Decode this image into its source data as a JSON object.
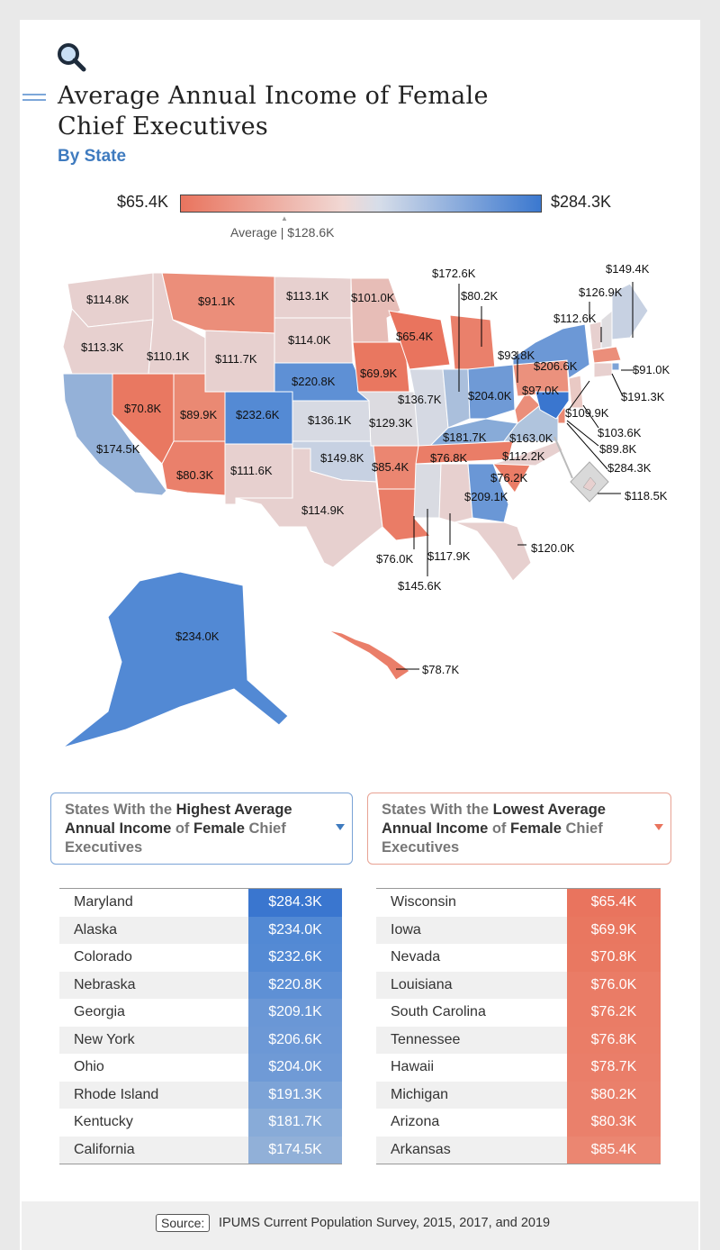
{
  "header": {
    "title": "Average Annual Income of Female Chief Executives",
    "subtitle": "By State"
  },
  "legend": {
    "min_label": "$65.4K",
    "max_label": "$284.3K",
    "average_label": "Average | $128.6K",
    "colors": {
      "low": "#e9745e",
      "mid": "#e9e2e6",
      "high": "#3b78cf"
    }
  },
  "map": {
    "states": [
      {
        "state": "Washington",
        "label": "$114.8K"
      },
      {
        "state": "Oregon",
        "label": "$113.3K"
      },
      {
        "state": "California",
        "label": "$174.5K"
      },
      {
        "state": "Idaho",
        "label": "$110.1K"
      },
      {
        "state": "Nevada",
        "label": "$70.8K"
      },
      {
        "state": "Utah",
        "label": "$89.9K"
      },
      {
        "state": "Arizona",
        "label": "$80.3K"
      },
      {
        "state": "Montana",
        "label": "$91.1K"
      },
      {
        "state": "Wyoming",
        "label": "$111.7K"
      },
      {
        "state": "Colorado",
        "label": "$232.6K"
      },
      {
        "state": "New Mexico",
        "label": "$111.6K"
      },
      {
        "state": "North Dakota",
        "label": "$113.1K"
      },
      {
        "state": "South Dakota",
        "label": "$114.0K"
      },
      {
        "state": "Nebraska",
        "label": "$220.8K"
      },
      {
        "state": "Kansas",
        "label": "$136.1K"
      },
      {
        "state": "Oklahoma",
        "label": "$149.8K"
      },
      {
        "state": "Texas",
        "label": "$114.9K"
      },
      {
        "state": "Minnesota",
        "label": "$101.0K"
      },
      {
        "state": "Iowa",
        "label": "$69.9K"
      },
      {
        "state": "Missouri",
        "label": "$129.3K"
      },
      {
        "state": "Arkansas",
        "label": "$85.4K"
      },
      {
        "state": "Louisiana",
        "label": "$76.0K"
      },
      {
        "state": "Wisconsin",
        "label": "$65.4K"
      },
      {
        "state": "Illinois",
        "label": "$136.7K"
      },
      {
        "state": "Michigan",
        "label": "$80.2K"
      },
      {
        "state": "Indiana",
        "label": "$172.6K"
      },
      {
        "state": "Ohio",
        "label": "$204.0K"
      },
      {
        "state": "Kentucky",
        "label": "$181.7K"
      },
      {
        "state": "Tennessee",
        "label": "$76.8K"
      },
      {
        "state": "Mississippi",
        "label": "$145.6K"
      },
      {
        "state": "Alabama",
        "label": "$117.9K"
      },
      {
        "state": "Georgia",
        "label": "$209.1K"
      },
      {
        "state": "Florida",
        "label": "$120.0K"
      },
      {
        "state": "South Carolina",
        "label": "$76.2K"
      },
      {
        "state": "North Carolina",
        "label": "$112.2K"
      },
      {
        "state": "Virginia",
        "label": "$163.0K"
      },
      {
        "state": "West Virginia",
        "label": "$93.8K"
      },
      {
        "state": "Pennsylvania",
        "label": "$97.0K"
      },
      {
        "state": "New York",
        "label": "$206.6K"
      },
      {
        "state": "Maine",
        "label": "$149.4K"
      },
      {
        "state": "New Hampshire",
        "label": "$126.9K"
      },
      {
        "state": "Vermont",
        "label": "$112.6K"
      },
      {
        "state": "Massachusetts",
        "label": "$91.0K"
      },
      {
        "state": "Rhode Island",
        "label": "$191.3K"
      },
      {
        "state": "Connecticut",
        "label": "$109.9K"
      },
      {
        "state": "New Jersey",
        "label": "$103.6K"
      },
      {
        "state": "Delaware",
        "label": "$89.8K"
      },
      {
        "state": "Maryland",
        "label": "$284.3K"
      },
      {
        "state": "District of Columbia",
        "label": "$118.5K"
      },
      {
        "state": "Alaska",
        "label": "$234.0K"
      },
      {
        "state": "Hawaii",
        "label": "$78.7K"
      }
    ]
  },
  "highest": {
    "heading_parts": [
      "States With the ",
      "Highest Average Annual Income",
      " of ",
      "Female",
      " Chief Executives"
    ],
    "rows": [
      {
        "name": "Maryland",
        "value": "$284.3K",
        "color": "#3a76cf"
      },
      {
        "name": "Alaska",
        "value": "$234.0K",
        "color": "#5289d4"
      },
      {
        "name": "Colorado",
        "value": "$232.6K",
        "color": "#548ad4"
      },
      {
        "name": "Nebraska",
        "value": "$220.8K",
        "color": "#5e90d5"
      },
      {
        "name": "Georgia",
        "value": "$209.1K",
        "color": "#6a97d6"
      },
      {
        "name": "New York",
        "value": "$206.6K",
        "color": "#6c98d6"
      },
      {
        "name": "Ohio",
        "value": "$204.0K",
        "color": "#6f9ad6"
      },
      {
        "name": "Rhode Island",
        "value": "$191.3K",
        "color": "#7ca3d7"
      },
      {
        "name": "Kentucky",
        "value": "$181.7K",
        "color": "#88abd8"
      },
      {
        "name": "California",
        "value": "$174.5K",
        "color": "#91b0d8"
      }
    ]
  },
  "lowest": {
    "heading_parts": [
      "States With the ",
      "Lowest Average Annual Income",
      " of ",
      "Female",
      " Chief Executives"
    ],
    "rows": [
      {
        "name": "Wisconsin",
        "value": "$65.4K",
        "color": "#e9745e"
      },
      {
        "name": "Iowa",
        "value": "$69.9K",
        "color": "#e97760"
      },
      {
        "name": "Nevada",
        "value": "$70.8K",
        "color": "#e97861"
      },
      {
        "name": "Louisiana",
        "value": "$76.0K",
        "color": "#ea7c66"
      },
      {
        "name": "South Carolina",
        "value": "$76.2K",
        "color": "#ea7c66"
      },
      {
        "name": "Tennessee",
        "value": "$76.8K",
        "color": "#ea7d67"
      },
      {
        "name": "Hawaii",
        "value": "$78.7K",
        "color": "#ea7e69"
      },
      {
        "name": "Michigan",
        "value": "$80.2K",
        "color": "#ea806b"
      },
      {
        "name": "Arizona",
        "value": "$80.3K",
        "color": "#ea806b"
      },
      {
        "name": "Arkansas",
        "value": "$85.4K",
        "color": "#eb8671"
      }
    ]
  },
  "footer": {
    "source_label": "Source:",
    "source_text": "IPUMS Current Population Survey, 2015, 2017, and 2019"
  }
}
